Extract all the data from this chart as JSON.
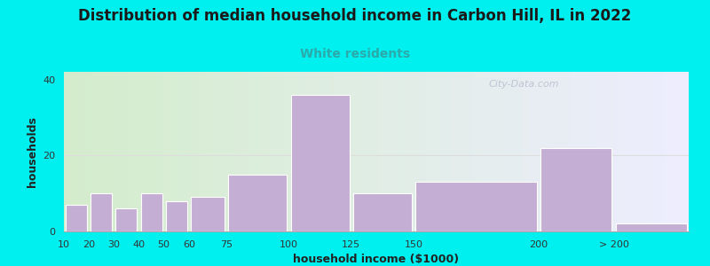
{
  "title": "Distribution of median household income in Carbon Hill, IL in 2022",
  "subtitle": "White residents",
  "xlabel": "household income ($1000)",
  "ylabel": "households",
  "background_color": "#00EFEF",
  "plot_bg_gradient_left": "#d4edcc",
  "plot_bg_gradient_right": "#eeeeff",
  "bar_color": "#c4aed4",
  "bar_edgecolor": "#ffffff",
  "categories": [
    "10",
    "20",
    "30",
    "40",
    "50",
    "60",
    "75",
    "100",
    "125",
    "150",
    "200",
    "> 200"
  ],
  "values": [
    7,
    10,
    6,
    10,
    8,
    9,
    15,
    36,
    10,
    13,
    22,
    2
  ],
  "bar_lefts": [
    10,
    20,
    30,
    40,
    50,
    60,
    75,
    100,
    125,
    150,
    200,
    230
  ],
  "bar_rights": [
    20,
    30,
    40,
    50,
    60,
    75,
    100,
    125,
    150,
    200,
    230,
    260
  ],
  "xlim": [
    10,
    260
  ],
  "ylim": [
    0,
    42
  ],
  "yticks": [
    0,
    20,
    40
  ],
  "title_fontsize": 12,
  "subtitle_fontsize": 10,
  "subtitle_color": "#2aaaaa",
  "axis_label_fontsize": 9,
  "tick_fontsize": 8,
  "watermark_text": "City-Data.com",
  "grid_color": "#dddddd",
  "spine_color": "#aaaaaa"
}
